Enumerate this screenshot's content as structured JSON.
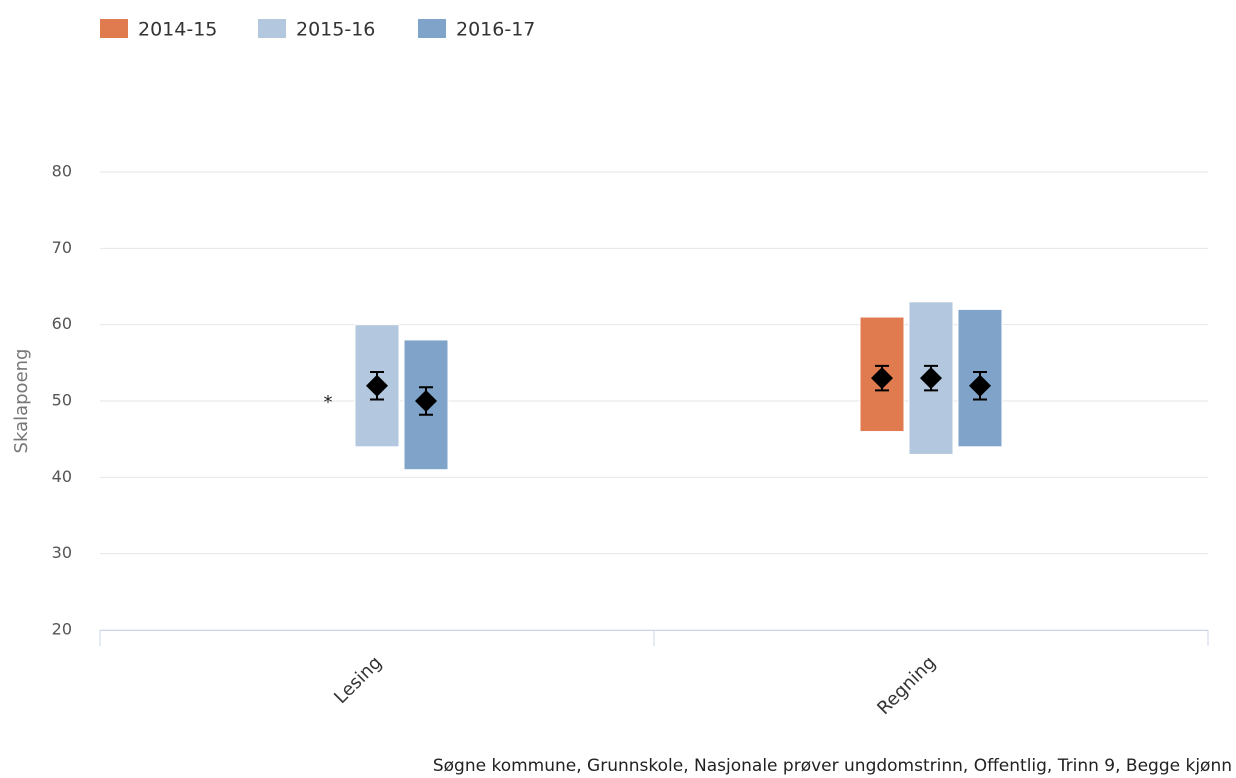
{
  "chart_data": {
    "type": "floatingbar",
    "y_label": "Skalapoeng",
    "caption": "Søgne kommune, Grunnskole, Nasjonale prøver ungdomstrinn, Offentlig, Trinn 9, Begge kjønn",
    "annotation": "*",
    "categories": [
      "Lesing",
      "Regning"
    ],
    "series": [
      {
        "name": "2014-15",
        "color": "#e07b4f",
        "low": [
          null,
          46
        ],
        "high": [
          null,
          61
        ],
        "mean": [
          null,
          53
        ],
        "error": [
          null,
          1.6
        ]
      },
      {
        "name": "2015-16",
        "color": "#b3c8df",
        "low": [
          44,
          43
        ],
        "high": [
          60,
          63
        ],
        "mean": [
          52,
          53
        ],
        "error": [
          1.8,
          1.6
        ]
      },
      {
        "name": "2016-17",
        "color": "#7fa3c9",
        "low": [
          41,
          44
        ],
        "high": [
          58,
          62
        ],
        "mean": [
          50,
          52
        ],
        "error": [
          1.8,
          1.8
        ]
      }
    ],
    "ylim": [
      20,
      80
    ],
    "yticks": [
      20,
      30,
      40,
      50,
      60,
      70,
      80
    ],
    "grid": true
  }
}
